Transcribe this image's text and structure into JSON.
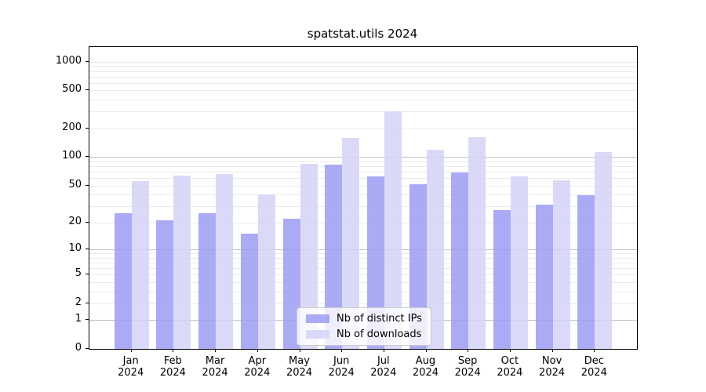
{
  "chart_data": {
    "type": "bar",
    "title": "spatstat.utils 2024",
    "categories": [
      "Jan",
      "Feb",
      "Mar",
      "Apr",
      "May",
      "Jun",
      "Jul",
      "Aug",
      "Sep",
      "Oct",
      "Nov",
      "Dec"
    ],
    "year_label": "2024",
    "series": [
      {
        "name": "Nb of distinct IPs",
        "color": "#9f9ff4",
        "values": [
          25,
          21,
          25,
          15,
          22,
          83,
          63,
          52,
          69,
          27,
          31,
          39
        ]
      },
      {
        "name": "Nb of downloads",
        "color": "#d4d4f7",
        "values": [
          56,
          64,
          66,
          40,
          85,
          159,
          300,
          120,
          163,
          62,
          57,
          113
        ]
      }
    ],
    "y_scale": "log10(1+x)",
    "y_ticks": [
      0,
      1,
      2,
      5,
      10,
      20,
      50,
      100,
      200,
      500,
      1000
    ],
    "y_major_gridlines": [
      1,
      10,
      100
    ],
    "y_minor_gridlines": [
      2,
      3,
      4,
      5,
      6,
      7,
      8,
      9,
      20,
      30,
      40,
      50,
      60,
      70,
      80,
      90,
      200,
      300,
      400,
      500,
      600,
      700,
      800,
      900,
      1000
    ],
    "ylim": [
      0,
      1400
    ],
    "grid": true,
    "legend_position": "lower center"
  },
  "colors": {
    "background": "#ffffff",
    "axis": "#000000",
    "grid_major": "#c3c3c3",
    "grid_minor": "#ebebeb",
    "text": "#000000",
    "legend_border": "#cccccc"
  }
}
